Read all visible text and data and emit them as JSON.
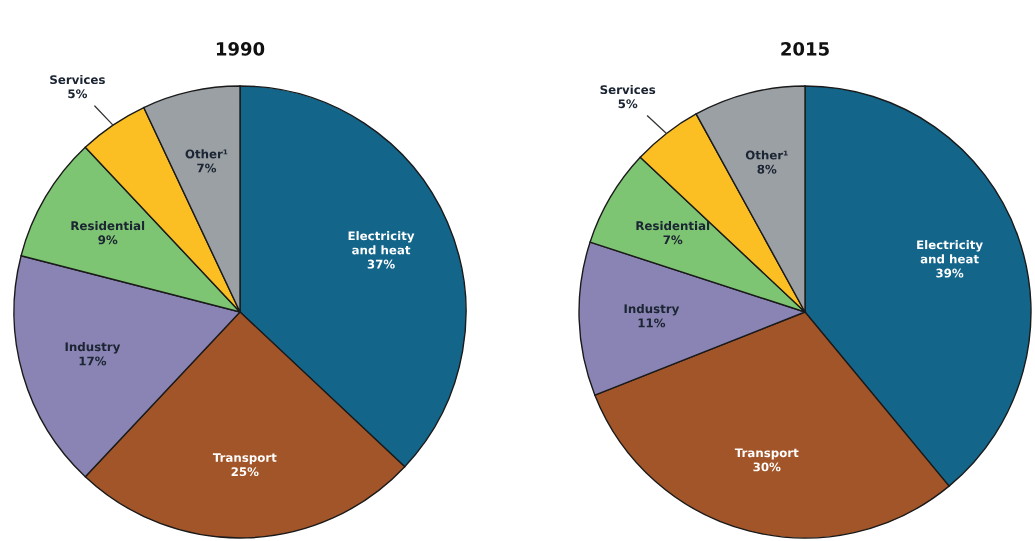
{
  "chart_data": [
    {
      "type": "pie",
      "title": "1990",
      "categories": [
        "Electricity and heat",
        "Transport",
        "Industry",
        "Residential",
        "Services",
        "Other¹"
      ],
      "values": [
        37,
        25,
        17,
        9,
        5,
        7
      ],
      "colors": [
        "#13658a",
        "#a3552a",
        "#8a84b4",
        "#7dc572",
        "#fbbf24",
        "#9ba0a4"
      ],
      "value_labels": [
        "37%",
        "25%",
        "17%",
        "9%",
        "5%",
        "7%"
      ]
    },
    {
      "type": "pie",
      "title": "2015",
      "categories": [
        "Electricity and heat",
        "Transport",
        "Industry",
        "Residential",
        "Services",
        "Other¹"
      ],
      "values": [
        39,
        30,
        11,
        7,
        5,
        8
      ],
      "colors": [
        "#13658a",
        "#a3552a",
        "#8a84b4",
        "#7dc572",
        "#fbbf24",
        "#9ba0a4"
      ],
      "value_labels": [
        "39%",
        "30%",
        "11%",
        "7%",
        "5%",
        "8%"
      ]
    }
  ]
}
